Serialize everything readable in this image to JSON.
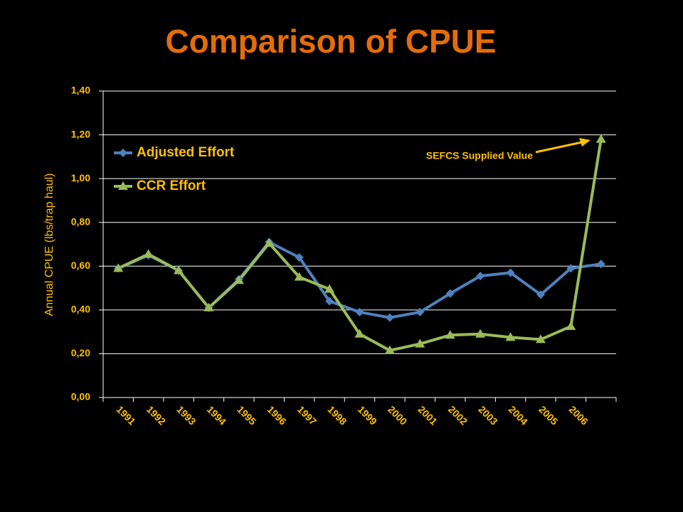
{
  "chart_data": {
    "type": "line",
    "title": "Comparison of CPUE",
    "y_label": "Annual CPUE  (lbs/trap haul)",
    "annotation": "SEFCS Supplied Value",
    "categories": [
      "1991",
      "1992",
      "1993",
      "1994",
      "1995",
      "1996",
      "1997",
      "1998",
      "1999",
      "2000",
      "2001",
      "2002",
      "2003",
      "2004",
      "2005",
      "2006",
      null
    ],
    "series": [
      {
        "name": "Adjusted Effort",
        "color": "#4f81bd",
        "marker": "diamond",
        "values": [
          0.59,
          0.65,
          0.58,
          0.41,
          0.54,
          0.71,
          0.64,
          0.44,
          0.39,
          0.365,
          0.39,
          0.475,
          0.555,
          0.57,
          0.47,
          0.59,
          0.61
        ]
      },
      {
        "name": "CCR Effort",
        "color": "#9bbb59",
        "marker": "triangle",
        "values": [
          0.59,
          0.655,
          0.58,
          0.41,
          0.535,
          0.705,
          0.55,
          0.495,
          0.29,
          0.215,
          0.245,
          0.285,
          0.29,
          0.275,
          0.265,
          0.325,
          1.18
        ]
      }
    ],
    "ylim": [
      0,
      1.4
    ],
    "yticks": [
      {
        "value": 0,
        "label": "0,00"
      },
      {
        "value": 0.2,
        "label": "0,20"
      },
      {
        "value": 0.4,
        "label": "0,40"
      },
      {
        "value": 0.6,
        "label": "0,60"
      },
      {
        "value": 0.8,
        "label": "0,80"
      },
      {
        "value": 1.0,
        "label": "1,00"
      },
      {
        "value": 1.2,
        "label": "1,20"
      },
      {
        "value": 1.4,
        "label": "1,40"
      }
    ],
    "grid": true,
    "legend": "upper left"
  }
}
